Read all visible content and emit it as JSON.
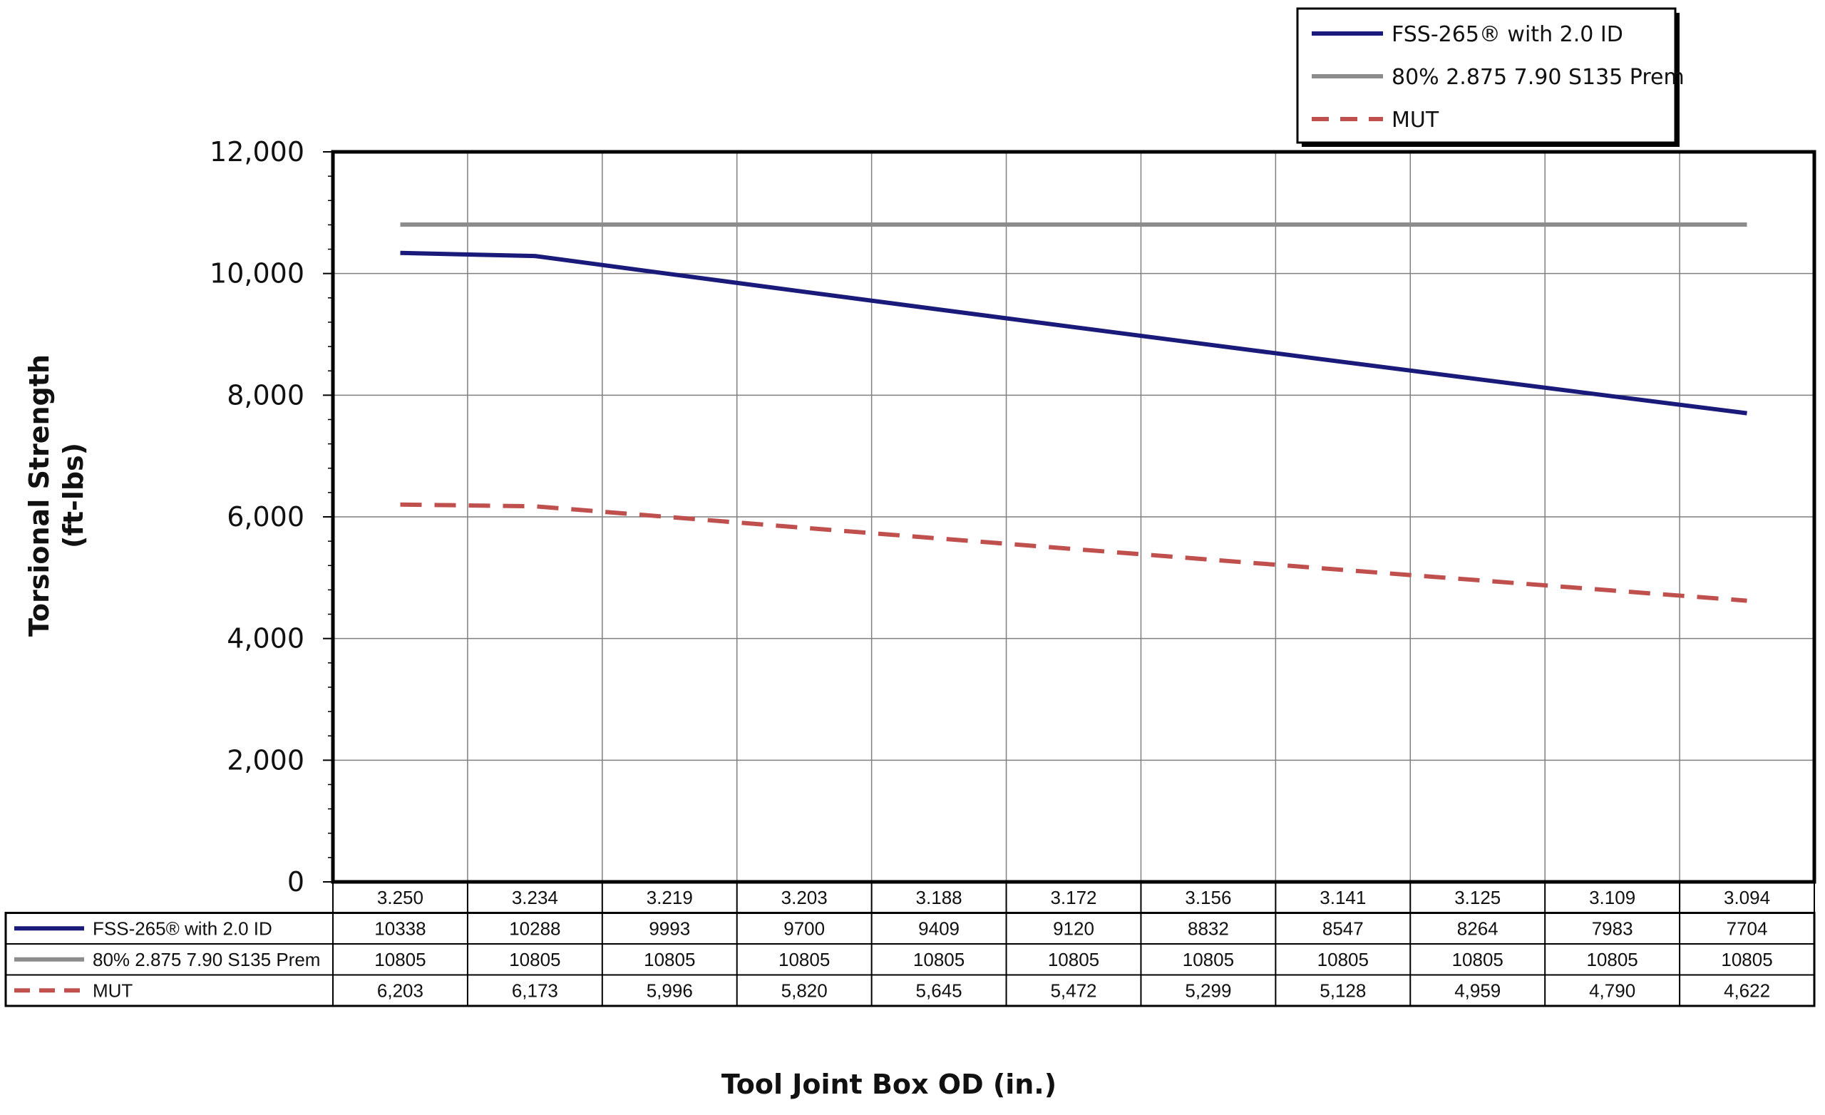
{
  "chart_data": {
    "type": "line",
    "xlabel": "Tool Joint Box OD (in.)",
    "ylabel_line1": "Torsional Strength",
    "ylabel_line2": "(ft-lbs)",
    "ylim": [
      0,
      12000
    ],
    "y_ticks": [
      "0",
      "2,000",
      "4,000",
      "6,000",
      "8,000",
      "10,000",
      "12,000"
    ],
    "categories": [
      "3.250",
      "3.234",
      "3.219",
      "3.203",
      "3.188",
      "3.172",
      "3.156",
      "3.141",
      "3.125",
      "3.109",
      "3.094"
    ],
    "grid": true,
    "legend_position": "top-right",
    "series": [
      {
        "name": "FSS-265® with 2.0 ID",
        "color": "#1a1a7a",
        "dash": "solid",
        "values": [
          10338,
          10288,
          9993,
          9700,
          9409,
          9120,
          8832,
          8547,
          8264,
          7983,
          7704
        ],
        "labels": [
          "10338",
          "10288",
          "9993",
          "9700",
          "9409",
          "9120",
          "8832",
          "8547",
          "8264",
          "7983",
          "7704"
        ]
      },
      {
        "name": "80% 2.875 7.90 S135 Prem",
        "color": "#8c8c8c",
        "dash": "solid",
        "values": [
          10805,
          10805,
          10805,
          10805,
          10805,
          10805,
          10805,
          10805,
          10805,
          10805,
          10805
        ],
        "labels": [
          "10805",
          "10805",
          "10805",
          "10805",
          "10805",
          "10805",
          "10805",
          "10805",
          "10805",
          "10805",
          "10805"
        ]
      },
      {
        "name": "MUT",
        "color": "#c0504d",
        "dash": "dashed",
        "values": [
          6203,
          6173,
          5996,
          5820,
          5645,
          5472,
          5299,
          5128,
          4959,
          4790,
          4622
        ],
        "labels": [
          "6,203",
          "6,173",
          "5,996",
          "5,820",
          "5,645",
          "5,472",
          "5,299",
          "5,128",
          "4,959",
          "4,790",
          "4,622"
        ]
      }
    ],
    "legend_series_names": [
      "FSS-265® with 2.0 ID",
      "80% 2.875 7.90 S135 Prem",
      "MUT"
    ]
  }
}
